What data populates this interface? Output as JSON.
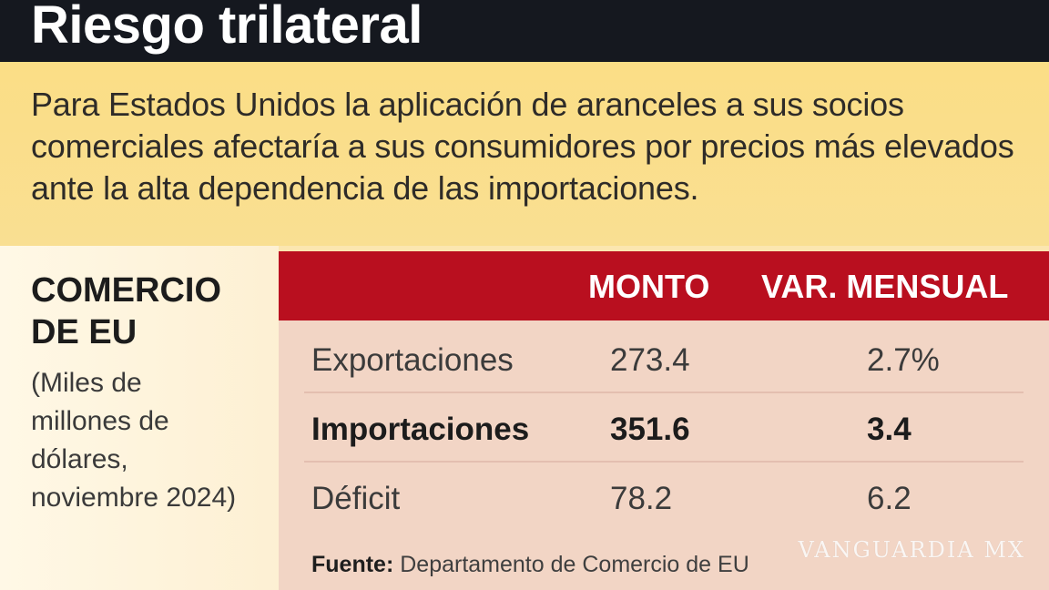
{
  "header": {
    "title": "Riesgo trilateral"
  },
  "intro": {
    "text": "Para Estados Unidos la aplicación de aranceles a sus socios comerciales afectaría a sus consumidores por precios más elevados ante la alta dependencia de las importaciones."
  },
  "left_panel": {
    "title": "COMERCIO DE EU",
    "subtitle": "(Miles de millones de dólares, noviembre 2024)"
  },
  "table": {
    "columns": [
      "",
      "MONTO",
      "VAR. MENSUAL"
    ],
    "header_color": "#b90f1f",
    "rows": [
      {
        "label": "Exportaciones",
        "monto": "273.4",
        "var": "2.7%",
        "bold": false
      },
      {
        "label": "Importaciones",
        "monto": "351.6",
        "var": "3.4",
        "bold": true
      },
      {
        "label": "Déficit",
        "monto": "78.2",
        "var": "6.2",
        "bold": false
      }
    ]
  },
  "source": {
    "label": "Fuente:",
    "text": "Departamento de Comercio de EU"
  },
  "watermark": "VANGUARDIA MX"
}
